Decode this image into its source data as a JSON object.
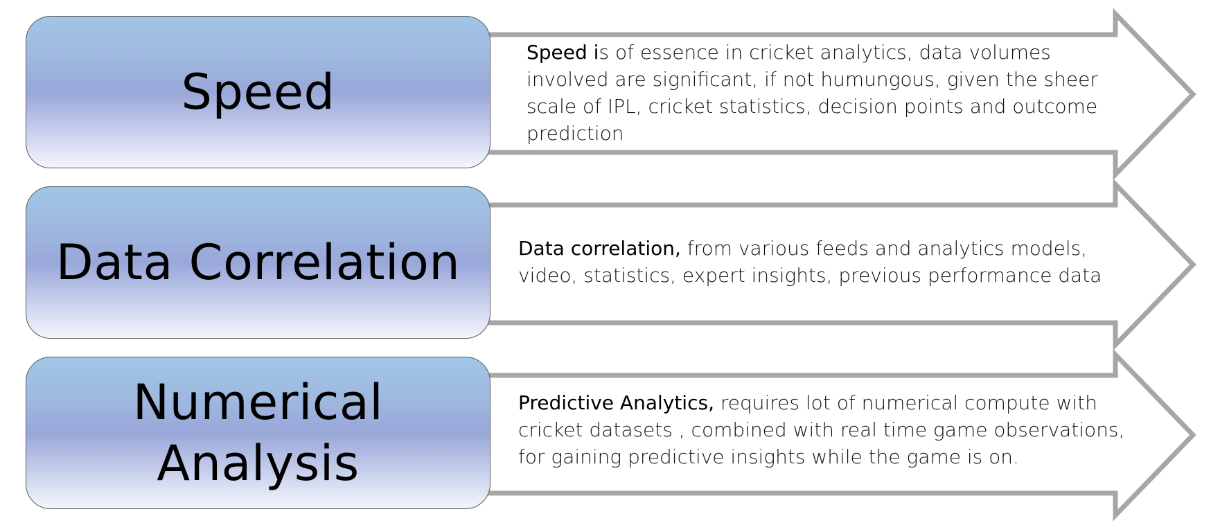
{
  "rows": [
    {
      "label": "Speed",
      "lead": "Speed i",
      "text": "s of essence in cricket analytics, data volumes involved are significant, if not humungous, given the sheer scale of IPL, cricket statistics, decision points and outcome prediction"
    },
    {
      "label": "Data Correlation",
      "lead": "Data correlation,",
      "text": " from various feeds and analytics models, video, statistics, expert insights, previous performance data"
    },
    {
      "label": "Numerical\nAnalysis",
      "lead": "Predictive Analytics,",
      "text": " requires lot of numerical compute with cricket datasets , combined with real time game observations, for gaining predictive insights while the game is on."
    }
  ],
  "colors": {
    "arrow_stroke": "#a6a6a6",
    "arrow_fill": "#ffffff",
    "box_gradient_top": "#a0c6e6",
    "box_gradient_mid": "#99a7d9",
    "box_gradient_bottom": "#f4f6fc",
    "box_border": "#5a5a5a"
  }
}
